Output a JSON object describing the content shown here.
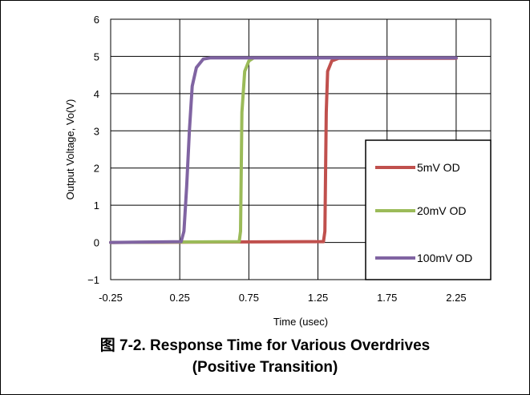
{
  "chart_data": {
    "type": "line",
    "title": "",
    "xlabel": "Time (usec)",
    "ylabel": "Output Voltage, Vo(V)",
    "xlim": [
      -0.25,
      2.5
    ],
    "ylim": [
      -1,
      6
    ],
    "xticks": [
      "-0.25",
      "0.25",
      "0.75",
      "1.25",
      "1.75",
      "2.25"
    ],
    "xtick_values": [
      -0.25,
      0.25,
      0.75,
      1.25,
      1.75,
      2.25
    ],
    "yticks": [
      "−1",
      "0",
      "1",
      "2",
      "3",
      "4",
      "5",
      "6"
    ],
    "ytick_values": [
      -1,
      0,
      1,
      2,
      3,
      4,
      5,
      6
    ],
    "grid": true,
    "legend_position": "bottom-right",
    "series": [
      {
        "name": "5mV OD",
        "color": "#c0504d",
        "x": [
          -0.25,
          1.29,
          1.3,
          1.31,
          1.32,
          1.35,
          1.4,
          2.25
        ],
        "y": [
          0,
          0.02,
          0.3,
          3.5,
          4.6,
          4.88,
          4.95,
          4.95
        ]
      },
      {
        "name": "20mV OD",
        "color": "#9bbb59",
        "x": [
          -0.25,
          0.68,
          0.69,
          0.7,
          0.72,
          0.75,
          0.78
        ],
        "y": [
          0,
          0.02,
          0.3,
          3.5,
          4.6,
          4.88,
          4.95
        ]
      },
      {
        "name": "100mV OD",
        "color": "#8064a2",
        "x": [
          -0.25,
          0.26,
          0.28,
          0.3,
          0.32,
          0.34,
          0.37,
          0.42,
          0.47,
          2.25
        ],
        "y": [
          0,
          0.02,
          0.3,
          1.5,
          3.0,
          4.2,
          4.7,
          4.93,
          4.96,
          4.96
        ]
      }
    ]
  },
  "caption": {
    "line1": "图 7-2. Response Time for Various Overdrives",
    "line2": "(Positive Transition)"
  }
}
